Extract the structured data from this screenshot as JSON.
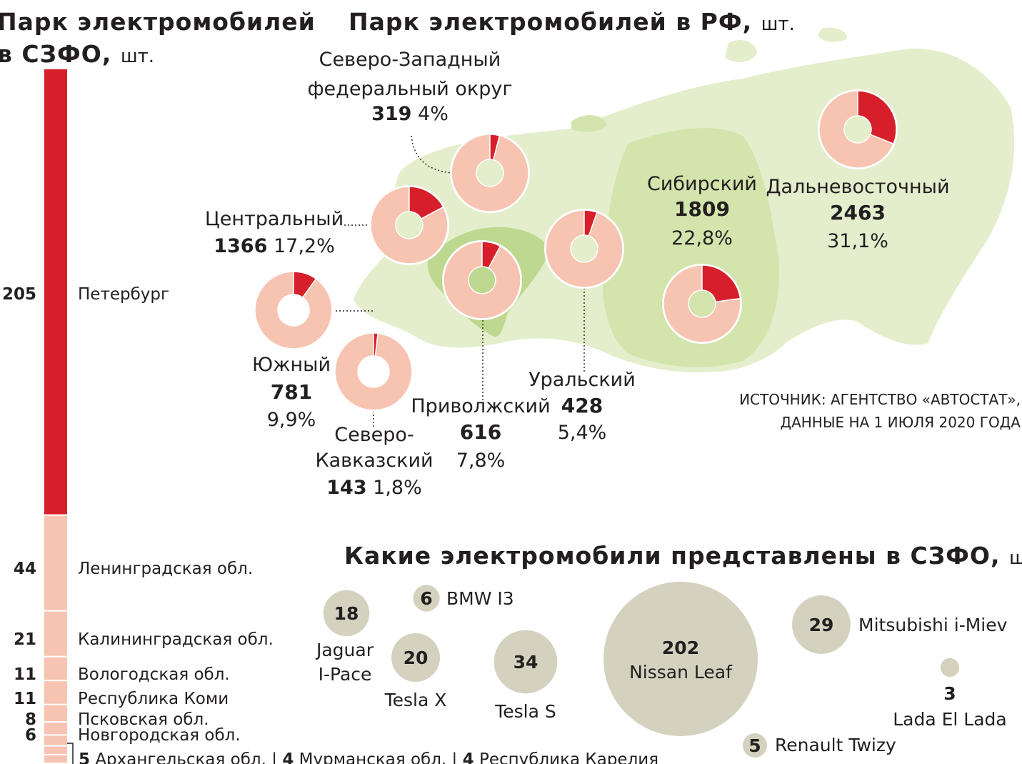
{
  "titles": {
    "szfo_line1": "Парк электромобилей",
    "szfo_line2": "в СЗФО,",
    "rf": "Парк электромобилей в РФ,",
    "models": "Какие электромобили представлены в СЗФО,",
    "unit": "шт."
  },
  "source": {
    "line1": "ИСТОЧНИК: АГЕНТСТВО «АВТОСТАТ»,",
    "line2": "ДАННЫЕ НА 1 ИЮЛЯ 2020 ГОДА"
  },
  "colors": {
    "red": "#d71f2b",
    "pink": "#f7c4b2",
    "map_light": "#e4eecc",
    "map_mid": "#d3e4ad",
    "map_dark": "#bfd890",
    "bubble": "#d4d2bf"
  },
  "chart_data": [
    {
      "type": "bar",
      "title": "Парк электромобилей в СЗФО, шт.",
      "orientation": "stacked-vertical",
      "series": [
        {
          "label": "Петербург",
          "value": 205,
          "value_text": "205",
          "color": "#d71f2b"
        },
        {
          "label": "Ленинградская обл.",
          "value": 44,
          "value_text": "44",
          "color": "#f7c4b2"
        },
        {
          "label": "Калининградская обл.",
          "value": 21,
          "value_text": "21",
          "color": "#f7c4b2"
        },
        {
          "label": "Вологодская обл.",
          "value": 11,
          "value_text": "11",
          "color": "#f7c4b2"
        },
        {
          "label": "Республика Коми",
          "value": 11,
          "value_text": "11",
          "color": "#f7c4b2"
        },
        {
          "label": "Псковская обл.",
          "value": 8,
          "value_text": "8",
          "color": "#f7c4b2"
        },
        {
          "label": "Новгородская обл.",
          "value": 6,
          "value_text": "6",
          "color": "#f7c4b2"
        },
        {
          "label": "Архангельская обл.",
          "value": 5,
          "value_text": "5",
          "color": "#f7c4b2"
        },
        {
          "label": "Мурманская обл.",
          "value": 4,
          "value_text": "4",
          "color": "#f7c4b2"
        },
        {
          "label": "Республика Карелия",
          "value": 4,
          "value_text": "4",
          "color": "#f7c4b2"
        }
      ]
    },
    {
      "type": "pie",
      "variant": "donut",
      "title": "Парк электромобилей в РФ, шт.",
      "regions": [
        {
          "name_lines": [
            "Северо-Западный",
            "федеральный округ"
          ],
          "value": 319,
          "value_text": "319",
          "share": 4.0,
          "share_text": "4%"
        },
        {
          "name_lines": [
            "Центральный"
          ],
          "value": 1366,
          "value_text": "1366",
          "share": 17.2,
          "share_text": "17,2%"
        },
        {
          "name_lines": [
            "Южный"
          ],
          "value": 781,
          "value_text": "781",
          "share": 9.9,
          "share_text": "9,9%"
        },
        {
          "name_lines": [
            "Северо-",
            "Кавказский"
          ],
          "value": 143,
          "value_text": "143",
          "share": 1.8,
          "share_text": "1,8%"
        },
        {
          "name_lines": [
            "Приволжский"
          ],
          "value": 616,
          "value_text": "616",
          "share": 7.8,
          "share_text": "7,8%"
        },
        {
          "name_lines": [
            "Уральский"
          ],
          "value": 428,
          "value_text": "428",
          "share": 5.4,
          "share_text": "5,4%"
        },
        {
          "name_lines": [
            "Сибирский"
          ],
          "value": 1809,
          "value_text": "1809",
          "share": 22.8,
          "share_text": "22,8%"
        },
        {
          "name_lines": [
            "Дальневосточный"
          ],
          "value": 2463,
          "value_text": "2463",
          "share": 31.1,
          "share_text": "31,1%"
        }
      ]
    },
    {
      "type": "scatter",
      "variant": "bubble",
      "title": "Какие электромобили представлены в СЗФО, шт.",
      "models": [
        {
          "name": "Jaguar I-Pace",
          "name_lines": [
            "Jaguar",
            "I-Pace"
          ],
          "value": 18,
          "value_text": "18"
        },
        {
          "name": "BMW I3",
          "name_lines": [
            "BMW I3"
          ],
          "value": 6,
          "value_text": "6"
        },
        {
          "name": "Tesla X",
          "name_lines": [
            "Tesla X"
          ],
          "value": 20,
          "value_text": "20"
        },
        {
          "name": "Tesla S",
          "name_lines": [
            "Tesla S"
          ],
          "value": 34,
          "value_text": "34"
        },
        {
          "name": "Nissan Leaf",
          "name_lines": [
            "Nissan Leaf"
          ],
          "value": 202,
          "value_text": "202"
        },
        {
          "name": "Mitsubishi i-Miev",
          "name_lines": [
            "Mitsubishi i-Miev"
          ],
          "value": 29,
          "value_text": "29"
        },
        {
          "name": "Lada El Lada",
          "name_lines": [
            "Lada El Lada"
          ],
          "value": 3,
          "value_text": "3"
        },
        {
          "name": "Renault Twizy",
          "name_lines": [
            "Renault Twizy"
          ],
          "value": 5,
          "value_text": "5"
        }
      ]
    }
  ]
}
